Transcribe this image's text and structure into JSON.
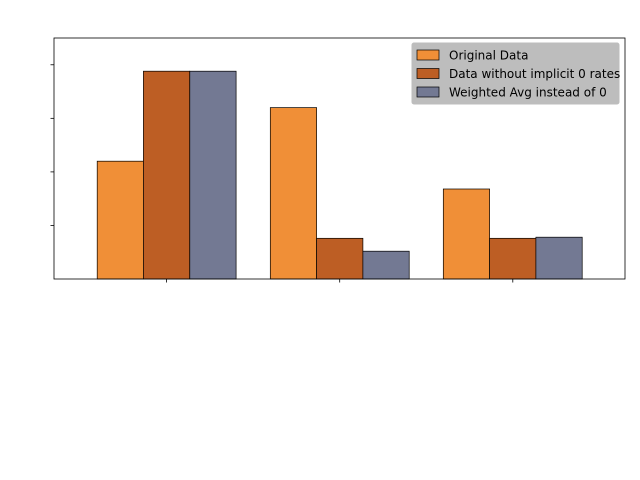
{
  "chart_data": {
    "type": "bar",
    "title": "",
    "xlabel": "",
    "ylabel": "",
    "categories": [
      "",
      "",
      ""
    ],
    "ylim": [
      0,
      4.5
    ],
    "grid": false,
    "legend_position": "top-right",
    "series": [
      {
        "name": "Original Data",
        "color": "#f08f37",
        "values": [
          2.2,
          3.2,
          1.68
        ]
      },
      {
        "name": "Data without implicit 0 rates",
        "color": "#bd5e24",
        "values": [
          3.88,
          0.76,
          0.76
        ]
      },
      {
        "name": "Weighted Avg instead of 0",
        "color": "#737993",
        "values": [
          3.88,
          0.52,
          0.78
        ]
      }
    ]
  }
}
